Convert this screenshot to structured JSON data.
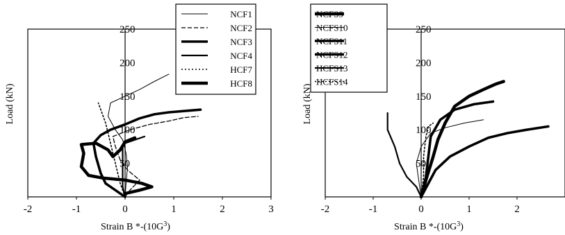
{
  "chart_data": [
    {
      "type": "line",
      "xlabel": "Strain B *-(10G",
      "xlabel_sup": "3",
      "xlabel_close": ")",
      "ylabel": "Load (kN)",
      "xlim": [
        -2,
        3
      ],
      "ylim": [
        0,
        250
      ],
      "xticks": [
        "-2",
        "-1",
        "0",
        "1",
        "2",
        "3"
      ],
      "yticks": [
        "50",
        "100",
        "150",
        "200",
        "250"
      ],
      "grid": false,
      "legend_position": "top-right",
      "series": [
        {
          "name": "NCF1",
          "style": "thin",
          "points": [
            [
              0.0,
              0
            ],
            [
              0.02,
              20
            ],
            [
              0.05,
              45
            ],
            [
              0.02,
              65
            ],
            [
              -0.05,
              85
            ],
            [
              -0.2,
              100
            ],
            [
              -0.35,
              120
            ],
            [
              -0.3,
              140
            ],
            [
              0.0,
              150
            ],
            [
              0.3,
              160
            ],
            [
              0.6,
              172
            ],
            [
              0.9,
              183
            ]
          ]
        },
        {
          "name": "NCF2",
          "style": "dashed",
          "points": [
            [
              0.0,
              0
            ],
            [
              0.1,
              10
            ],
            [
              0.3,
              25
            ],
            [
              0.05,
              40
            ],
            [
              -0.1,
              55
            ],
            [
              -0.2,
              75
            ],
            [
              -0.25,
              90
            ],
            [
              0.1,
              100
            ],
            [
              0.5,
              108
            ],
            [
              0.9,
              113
            ],
            [
              1.2,
              118
            ],
            [
              1.5,
              120
            ]
          ]
        },
        {
          "name": "NCF3",
          "style": "heavy",
          "points": [
            [
              0.0,
              0
            ],
            [
              -0.2,
              10
            ],
            [
              -0.4,
              20
            ],
            [
              -0.5,
              35
            ],
            [
              -0.6,
              60
            ],
            [
              -0.65,
              80
            ],
            [
              -0.5,
              92
            ],
            [
              -0.3,
              100
            ],
            [
              0.0,
              108
            ],
            [
              0.3,
              117
            ],
            [
              0.6,
              123
            ],
            [
              0.9,
              126
            ],
            [
              1.55,
              130
            ]
          ]
        },
        {
          "name": "NCF4",
          "style": "medium",
          "points": [
            [
              0.0,
              0
            ],
            [
              -0.05,
              15
            ],
            [
              -0.05,
              40
            ],
            [
              -0.05,
              60
            ],
            [
              -0.05,
              75
            ],
            [
              0.0,
              80
            ],
            [
              0.2,
              85
            ],
            [
              0.4,
              90
            ]
          ]
        },
        {
          "name": "HCF7",
          "style": "dotted",
          "points": [
            [
              0.0,
              0
            ],
            [
              -0.1,
              20
            ],
            [
              -0.2,
              50
            ],
            [
              -0.3,
              80
            ],
            [
              -0.4,
              110
            ],
            [
              -0.5,
              130
            ],
            [
              -0.55,
              140
            ]
          ]
        },
        {
          "name": "HCF8",
          "style": "heaviest",
          "points": [
            [
              0.0,
              5
            ],
            [
              0.3,
              10
            ],
            [
              0.55,
              15
            ],
            [
              0.35,
              20
            ],
            [
              0.0,
              25
            ],
            [
              -0.45,
              28
            ],
            [
              -0.75,
              32
            ],
            [
              -0.9,
              45
            ],
            [
              -0.85,
              65
            ],
            [
              -0.9,
              78
            ],
            [
              -0.6,
              80
            ],
            [
              -0.35,
              70
            ],
            [
              -0.25,
              60
            ],
            [
              -0.1,
              70
            ],
            [
              0.0,
              82
            ],
            [
              0.2,
              88
            ]
          ]
        }
      ]
    },
    {
      "type": "line",
      "xlabel": "Strain B *-(10G",
      "xlabel_sup": "3",
      "xlabel_close": ")",
      "ylabel": "Load (kN)",
      "xlim": [
        -2,
        3
      ],
      "ylim": [
        0,
        250
      ],
      "xticks": [
        "-2",
        "-1",
        "0",
        "1",
        "2"
      ],
      "yticks": [
        "50",
        "100",
        "150",
        "200",
        "250"
      ],
      "grid": false,
      "legend_position": "top-left",
      "series": [
        {
          "name": "NCFS9",
          "style": "heaviest",
          "points": [
            [
              0.0,
              0
            ],
            [
              0.12,
              30
            ],
            [
              0.25,
              60
            ],
            [
              0.35,
              85
            ],
            [
              0.5,
              110
            ],
            [
              0.7,
              135
            ],
            [
              1.0,
              150
            ],
            [
              1.3,
              160
            ],
            [
              1.55,
              168
            ],
            [
              1.72,
              172
            ]
          ]
        },
        {
          "name": "NCFS10",
          "style": "thin",
          "points": [
            [
              0.0,
              0
            ],
            [
              -0.05,
              25
            ],
            [
              -0.1,
              50
            ],
            [
              0.0,
              75
            ],
            [
              0.2,
              95
            ],
            [
              0.5,
              103
            ],
            [
              0.9,
              110
            ],
            [
              1.3,
              115
            ]
          ]
        },
        {
          "name": "NCFS11",
          "style": "heavy",
          "points": [
            [
              0.0,
              0
            ],
            [
              0.15,
              20
            ],
            [
              0.3,
              40
            ],
            [
              0.6,
              60
            ],
            [
              1.0,
              75
            ],
            [
              1.4,
              88
            ],
            [
              1.8,
              95
            ],
            [
              2.2,
              100
            ],
            [
              2.65,
              105
            ]
          ]
        },
        {
          "name": "NCFS12",
          "style": "heavy",
          "points": [
            [
              0.0,
              0
            ],
            [
              0.1,
              30
            ],
            [
              0.15,
              60
            ],
            [
              0.2,
              90
            ],
            [
              0.4,
              115
            ],
            [
              0.7,
              130
            ],
            [
              1.1,
              138
            ],
            [
              1.5,
              142
            ]
          ]
        },
        {
          "name": "HCFS13",
          "style": "medium",
          "points": [
            [
              0.0,
              0
            ],
            [
              -0.1,
              15
            ],
            [
              -0.3,
              30
            ],
            [
              -0.45,
              50
            ],
            [
              -0.55,
              75
            ],
            [
              -0.7,
              100
            ],
            [
              -0.7,
              125
            ]
          ]
        },
        {
          "name": "HCFS14",
          "style": "dotted",
          "points": [
            [
              0.0,
              0
            ],
            [
              0.05,
              30
            ],
            [
              0.05,
              60
            ],
            [
              0.1,
              90
            ],
            [
              0.15,
              105
            ],
            [
              0.25,
              110
            ]
          ]
        }
      ]
    }
  ]
}
